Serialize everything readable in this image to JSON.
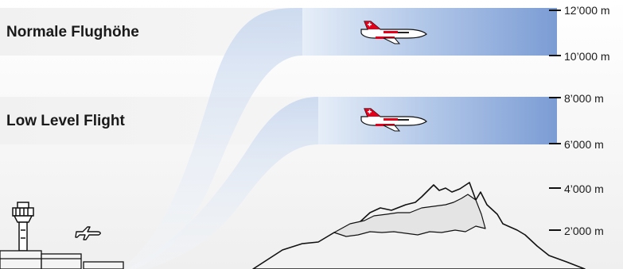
{
  "bands": [
    {
      "label": "Normale Flughöhe",
      "range_m": [
        10000,
        12000
      ]
    },
    {
      "label": "Low Level Flight",
      "range_m": [
        6000,
        8000
      ]
    }
  ],
  "altitude_labels": [
    "12’000 m",
    "10’000 m",
    "8’000 m",
    "6’000 m",
    "4’000 m",
    "2’000 m"
  ],
  "colors": {
    "band_blue": "#7f9fd6",
    "band_light": "#dfe9f6",
    "mountain_fill": "#f2f2f2",
    "mountain_stroke": "#111111",
    "text": "#1a1a1a",
    "aircraft_red": "#e3001b"
  },
  "icons": [
    "air-ambulance-jet-icon",
    "airport-tower-icon",
    "small-plane-icon",
    "mountain-icon"
  ]
}
